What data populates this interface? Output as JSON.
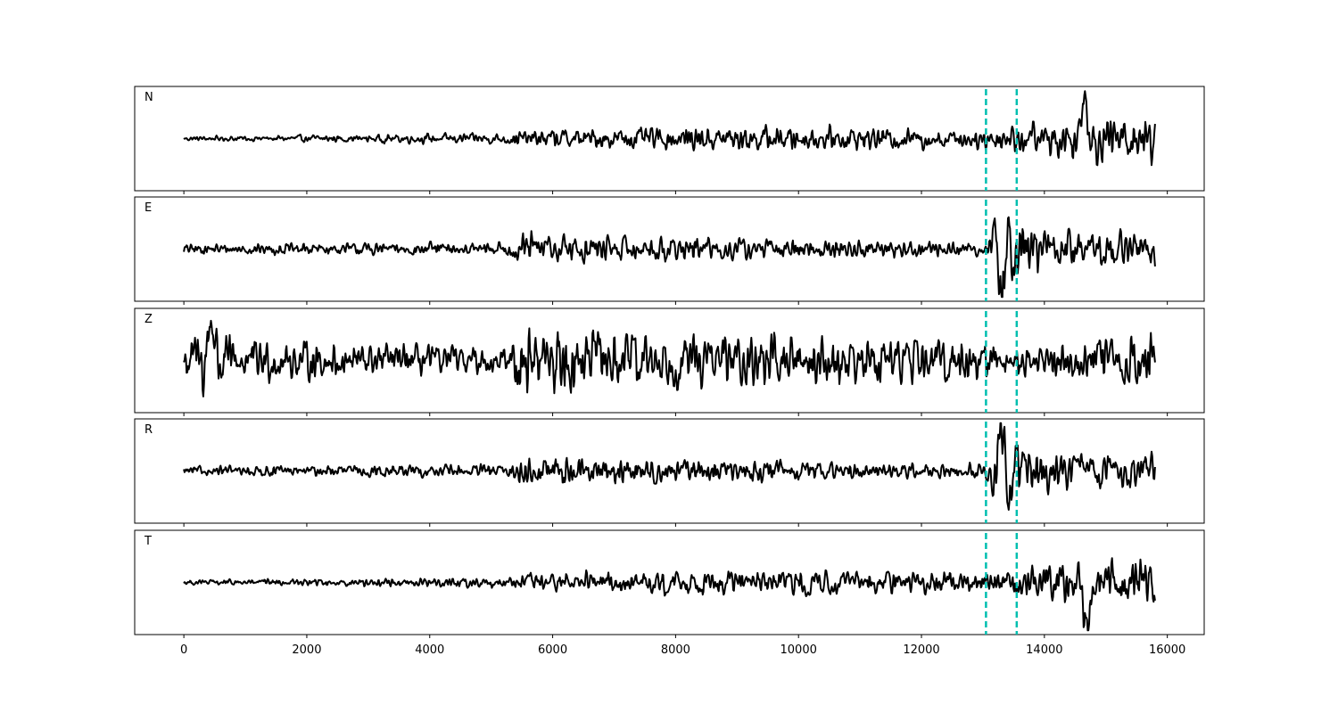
{
  "chart_data": {
    "type": "line",
    "xlim": [
      -800,
      16600
    ],
    "x_ticks": [
      0,
      2000,
      4000,
      6000,
      8000,
      10000,
      12000,
      14000,
      16000
    ],
    "x_tick_labels": [
      "0",
      "2000",
      "4000",
      "6000",
      "8000",
      "10000",
      "12000",
      "14000",
      "16000"
    ],
    "x_range": [
      0,
      15800
    ],
    "y_ticks_visible": false,
    "line_color": "#000000",
    "marker_color": "#00bfb0",
    "markers": [
      {
        "x": 13050,
        "style": "dashed"
      },
      {
        "x": 13550,
        "style": "dashed"
      }
    ],
    "panels": [
      {
        "label": "N",
        "ylim": [
          -1.0,
          1.0
        ],
        "base": 0.0,
        "envelope": [
          [
            0,
            0.05
          ],
          [
            5000,
            0.12
          ],
          [
            6000,
            0.22
          ],
          [
            9000,
            0.28
          ],
          [
            13000,
            0.22
          ],
          [
            13500,
            0.35
          ],
          [
            14600,
            0.5
          ],
          [
            15800,
            0.55
          ]
        ],
        "event_pulse": {
          "x": 14650,
          "amp": 1.0
        }
      },
      {
        "label": "E",
        "ylim": [
          -1.0,
          1.0
        ],
        "base": 0.0,
        "envelope": [
          [
            0,
            0.1
          ],
          [
            5300,
            0.15
          ],
          [
            5400,
            0.35
          ],
          [
            8000,
            0.25
          ],
          [
            13000,
            0.15
          ],
          [
            13300,
            0.8
          ],
          [
            14000,
            0.45
          ],
          [
            15800,
            0.35
          ]
        ],
        "event_pulse": {
          "x": 13300,
          "amp": -0.85
        }
      },
      {
        "label": "Z",
        "ylim": [
          -1.0,
          1.0
        ],
        "base": 0.0,
        "envelope": [
          [
            0,
            0.4
          ],
          [
            300,
            0.8
          ],
          [
            800,
            0.45
          ],
          [
            5300,
            0.25
          ],
          [
            5400,
            0.8
          ],
          [
            7500,
            0.55
          ],
          [
            13000,
            0.45
          ],
          [
            14000,
            0.3
          ],
          [
            15800,
            0.6
          ]
        ],
        "event_pulse": {
          "x": 450,
          "amp": 0.85
        }
      },
      {
        "label": "R",
        "ylim": [
          -1.0,
          1.0
        ],
        "base": 0.0,
        "envelope": [
          [
            0,
            0.1
          ],
          [
            5300,
            0.15
          ],
          [
            5400,
            0.35
          ],
          [
            8000,
            0.25
          ],
          [
            13000,
            0.15
          ],
          [
            13300,
            0.8
          ],
          [
            14000,
            0.45
          ],
          [
            15800,
            0.35
          ]
        ],
        "event_pulse": {
          "x": 13300,
          "amp": 0.9
        }
      },
      {
        "label": "T",
        "ylim": [
          -1.0,
          1.0
        ],
        "base": 0.0,
        "envelope": [
          [
            0,
            0.05
          ],
          [
            5000,
            0.12
          ],
          [
            6000,
            0.22
          ],
          [
            9000,
            0.28
          ],
          [
            13000,
            0.22
          ],
          [
            13500,
            0.35
          ],
          [
            14600,
            0.5
          ],
          [
            15800,
            0.55
          ]
        ],
        "event_pulse": {
          "x": 14700,
          "amp": -0.95
        }
      }
    ]
  }
}
